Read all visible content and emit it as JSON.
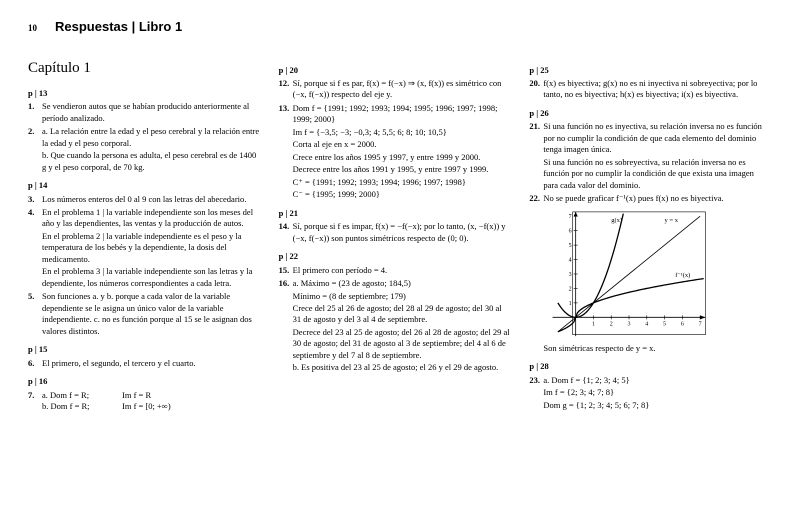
{
  "header": {
    "pageNum": "10",
    "title": "Respuestas | Libro 1"
  },
  "chapter": "Capítulo 1",
  "col1": {
    "p13": {
      "head": "p | 13",
      "i1n": "1.",
      "i1": "Se vendieron autos que se habían producido anteriormente al período analizado.",
      "i2n": "2.",
      "i2a": "a. La relación entre la edad y el peso cerebral y la relación entre la edad y el peso corporal.",
      "i2b": "b. Que cuando la persona es adulta, el peso cerebral es de 1400 g y el peso corporal, de 70 kg."
    },
    "p14": {
      "head": "p | 14",
      "i3n": "3.",
      "i3": "Los números enteros del 0 al 9 con las letras del abecedario.",
      "i4n": "4.",
      "i4a": "En el problema 1 | la variable independiente son los meses del año y las dependientes, las ventas y la producción de autos.",
      "i4b": "En el problema 2 | la variable independiente es el peso y la temperatura de los bebés y la dependiente, la dosis del medicamento.",
      "i4c": "En el problema 3 | la variable independiente son las letras y la dependiente, los números correspondientes a cada letra.",
      "i5n": "5.",
      "i5": "Son funciones a. y b. porque a cada valor de la variable dependiente se le asigna un único valor de la variable independiente. c. no es función porque al 15 se le asignan dos valores distintos."
    },
    "p15": {
      "head": "p | 15",
      "i6n": "6.",
      "i6": "El primero, el segundo, el tercero y el cuarto."
    },
    "p16": {
      "head": "p | 16",
      "i7n": "7.",
      "i7a": "a. Dom f = R;",
      "i7aIm": "Im f = R",
      "i7b": "b. Dom f = R;",
      "i7bIm": "Im f = [0; +∞)"
    }
  },
  "col2": {
    "p20": {
      "head": "p | 20",
      "i12n": "12.",
      "i12": "Sí, porque si f es par, f(x) = f(−x) ⇒ (x, f(x)) es simétrico con (−x, f(−x)) respecto del eje y.",
      "i13n": "13.",
      "i13a": "Dom f = {1991; 1992; 1993; 1994; 1995; 1996; 1997; 1998; 1999; 2000}",
      "i13b": "Im f = {−3,5; −3; −0,3; 4; 5,5; 6; 8; 10; 10,5}",
      "i13c": "Corta al eje en x = 2000.",
      "i13d": "Crece entre los años 1995 y 1997, y entre 1999 y 2000.",
      "i13e": "Decrece entre los años 1991 y 1995, y entre 1997 y 1999.",
      "i13f": "C⁺ = {1991; 1992; 1993; 1994; 1996; 1997; 1998}",
      "i13g": "C⁻ = {1995; 1999; 2000}"
    },
    "p21": {
      "head": "p | 21",
      "i14n": "14.",
      "i14": "Sí, porque si f es impar, f(x) = −f(−x); por lo tanto, (x, −f(x)) y (−x, f(−x)) son puntos simétricos respecto de (0; 0)."
    },
    "p22": {
      "head": "p | 22",
      "i15n": "15.",
      "i15": "El primero con período = 4.",
      "i16n": "16.",
      "i16a": "a. Máximo = (23 de agosto; 184,5)",
      "i16b": "Mínimo = (8 de septiembre; 179)",
      "i16c": "Crece del 25 al 26 de agosto; del 28 al 29 de agosto; del 30 al 31 de agosto y del 3 al 4 de septiembre.",
      "i16d": "Decrece del 23 al 25 de agosto; del 26 al 28 de agosto; del 29 al 30 de agosto; del 31 de agosto al 3 de septiembre; del 4 al 6 de septiembre y del 7 al 8 de septiembre.",
      "i16e": "b. Es positiva del 23 al 25 de agosto; el 26 y el 29 de agosto."
    }
  },
  "col3": {
    "p25": {
      "head": "p | 25",
      "i20n": "20.",
      "i20": "f(x) es biyectiva; g(x) no es ni inyectiva ni sobreyectiva; por lo tanto, no es biyectiva; h(x) es biyectiva; i(x) es biyectiva."
    },
    "p26": {
      "head": "p | 26",
      "i21n": "21.",
      "i21a": "Si una función no es inyectiva, su relación inversa no es función por no cumplir la condición de que cada elemento del dominio tenga imagen única.",
      "i21b": "Si una función no es sobreyectiva, su relación inversa no es función por no cumplir la condición de que exista una imagen para cada valor del dominio.",
      "i22n": "22.",
      "i22": "No se puede graficar f⁻¹(x) pues f(x) no es biyectiva."
    },
    "graph": {
      "labels": {
        "gx": "g(x)",
        "yx": "y = x",
        "fx": "f⁻¹(x)"
      },
      "xTicks": [
        "1",
        "2",
        "3",
        "4",
        "5",
        "6",
        "7"
      ],
      "yTicks": [
        "1",
        "2",
        "3",
        "4",
        "5",
        "6",
        "7"
      ],
      "axisColor": "#000000",
      "gCurveColor": "#000000",
      "lineColor": "#000000",
      "fCurveColor": "#000000",
      "width": 160,
      "height": 130,
      "xlim": [
        -1.5,
        7.5
      ],
      "ylim": [
        -1.5,
        7.5
      ]
    },
    "simText": "Son simétricas respecto de y = x.",
    "p28": {
      "head": "p | 28",
      "i23n": "23.",
      "i23a": "a. Dom f = {1; 2; 3; 4; 5}",
      "i23b": "Im f = {2; 3; 4; 7; 8}",
      "i23c": "Dom g = {1; 2; 3; 4; 5; 6; 7; 8}"
    }
  }
}
